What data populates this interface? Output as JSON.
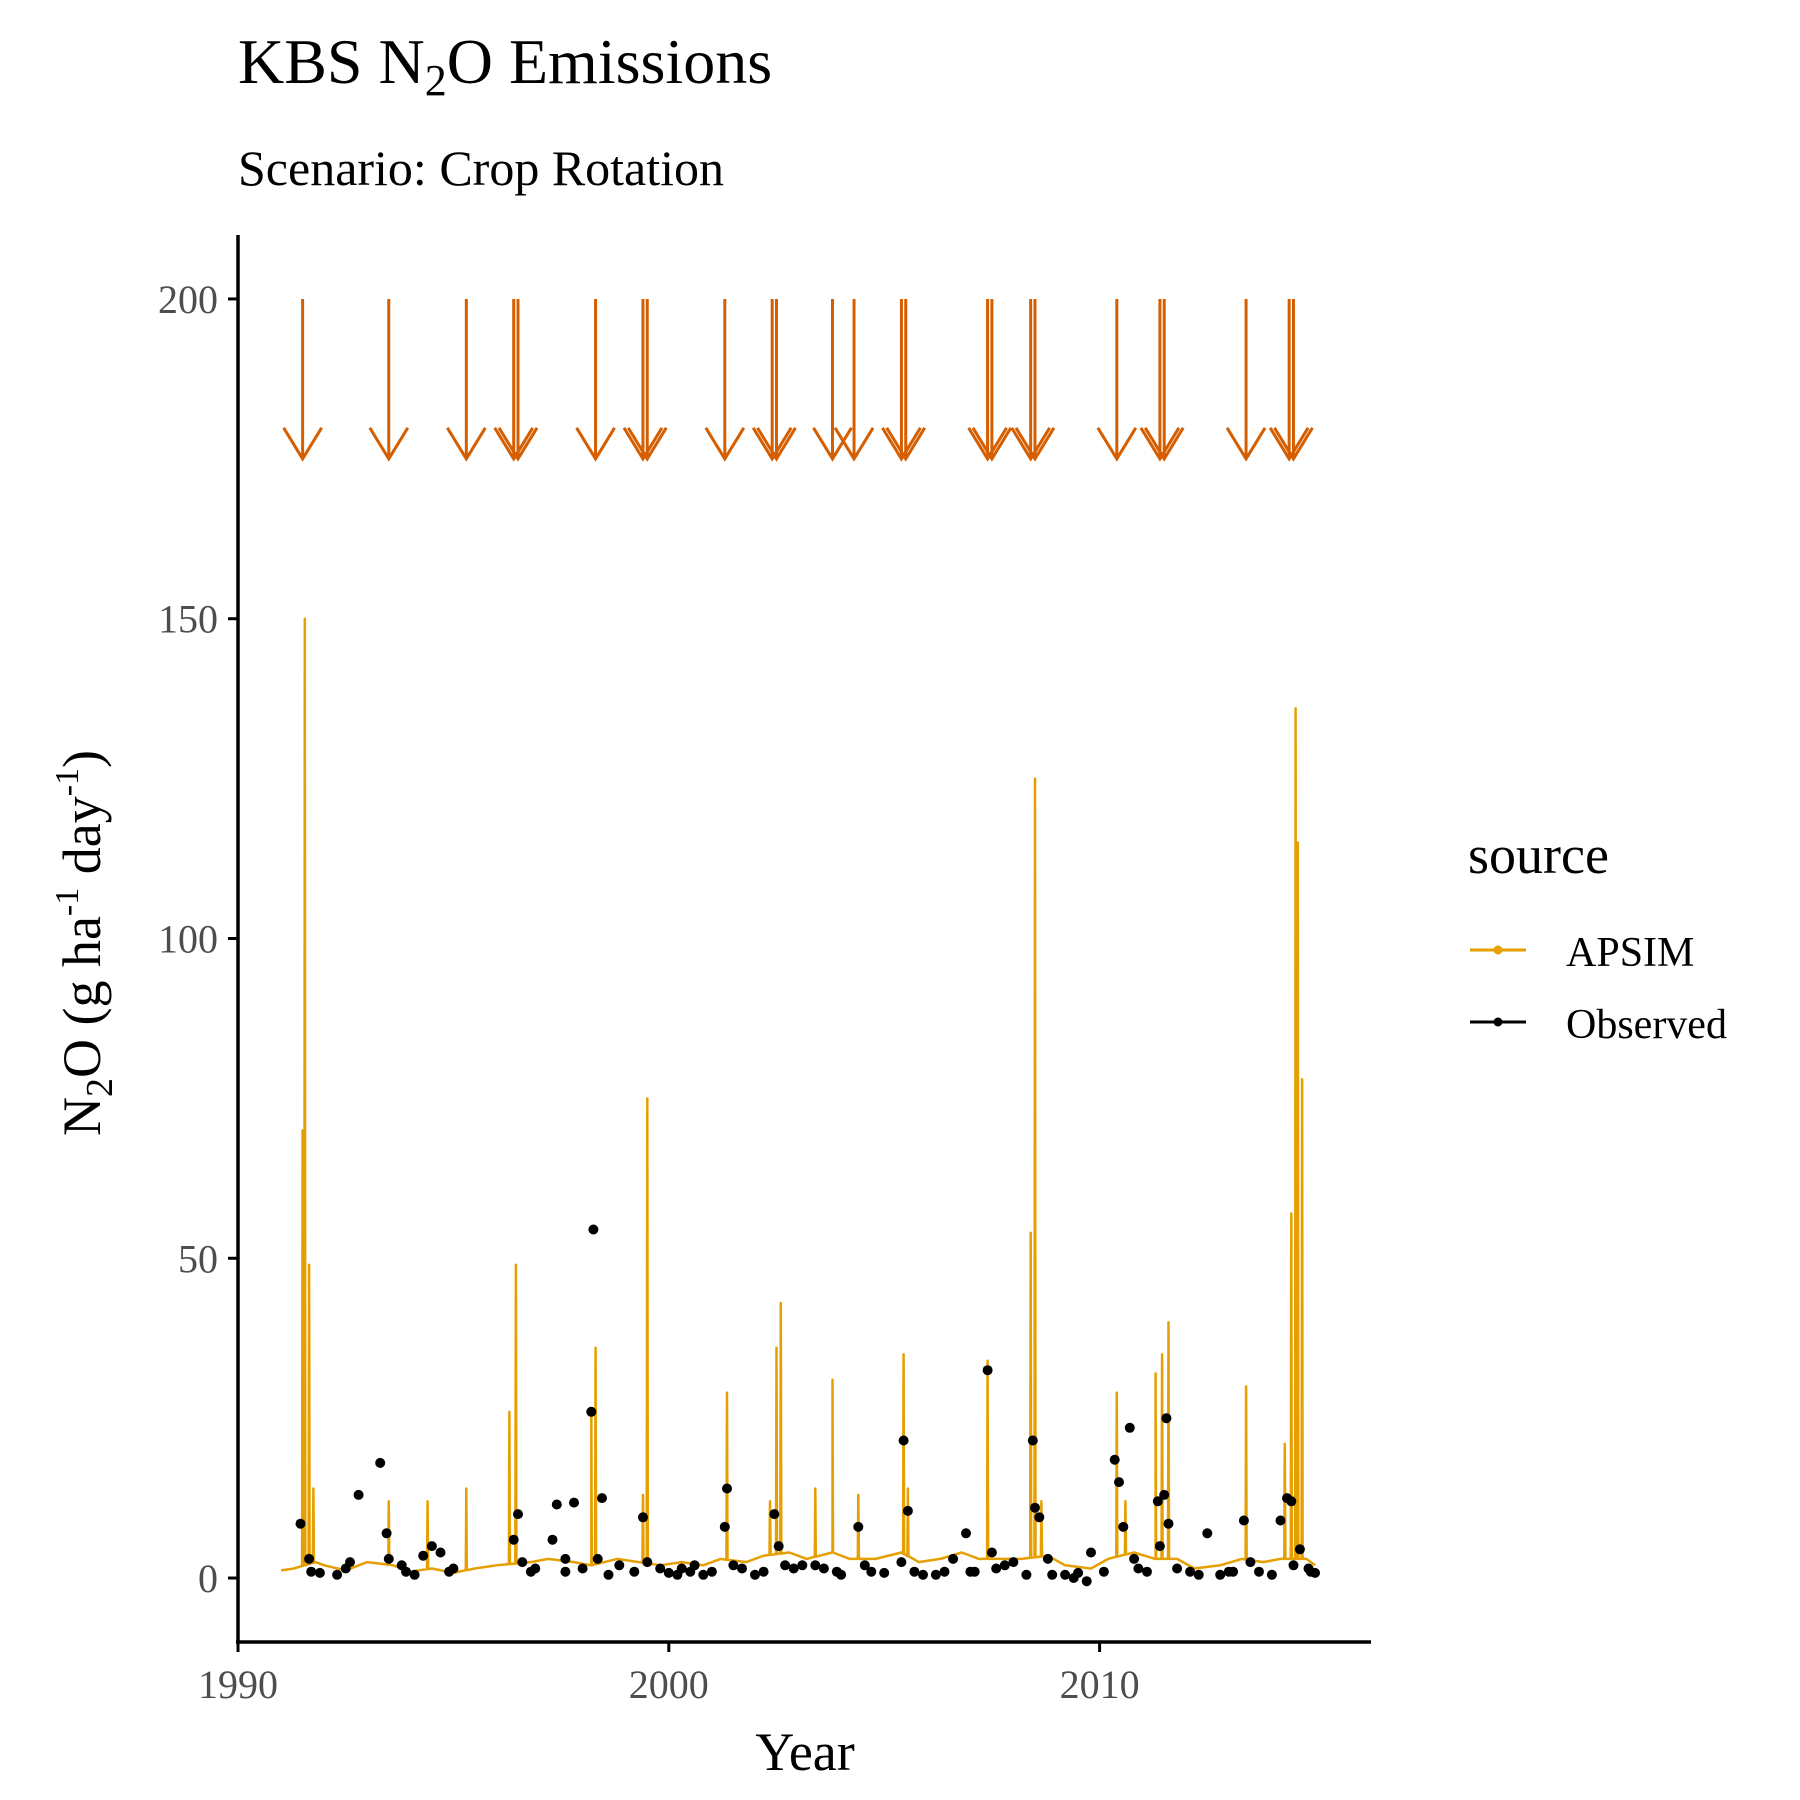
{
  "chart_data": {
    "type": "line",
    "title": {
      "pre": "KBS N",
      "sub": "2",
      "post": "O Emissions"
    },
    "subtitle": "Scenario: Crop Rotation",
    "xlabel": "Year",
    "ylabel": {
      "p1": "N",
      "s1": "2",
      "p2": "O (g ha",
      "s2": "-1",
      "p3": " day",
      "s3": "-1",
      "p4": ")"
    },
    "xlim": [
      1990.0,
      2016.3
    ],
    "ylim": [
      -10,
      210
    ],
    "x_ticks": [
      1990,
      2000,
      2010
    ],
    "x_tick_labels": [
      "1990",
      "2000",
      "2010"
    ],
    "y_ticks": [
      0,
      50,
      100,
      150,
      200
    ],
    "y_tick_labels": [
      "0",
      "50",
      "100",
      "150",
      "200"
    ],
    "grid": false,
    "legend": {
      "title": "source",
      "position": "right",
      "entries": [
        {
          "label": "APSIM",
          "color": "#E69F00"
        },
        {
          "label": "Observed",
          "color": "#000000"
        }
      ]
    },
    "colors": {
      "APSIM": "#E69F00",
      "Observed": "#000000",
      "arrows": "#D55E00"
    },
    "arrows": {
      "y_start": 200,
      "y_end": 175,
      "x": [
        1991.5,
        1993.5,
        1995.3,
        1996.4,
        1996.5,
        1998.3,
        1999.4,
        1999.5,
        2001.3,
        2002.4,
        2002.5,
        2003.8,
        2004.3,
        2005.4,
        2005.5,
        2007.4,
        2007.5,
        2008.4,
        2008.5,
        2010.4,
        2011.4,
        2011.5,
        2013.4,
        2014.4,
        2014.5
      ]
    },
    "series": [
      {
        "name": "APSIM",
        "type": "line",
        "baseline": [
          [
            1991.0,
            1.2
          ],
          [
            1991.3,
            1.5
          ],
          [
            1991.8,
            2.5
          ],
          [
            1992.0,
            2.0
          ],
          [
            1992.5,
            1.2
          ],
          [
            1993.0,
            2.5
          ],
          [
            1993.6,
            2.0
          ],
          [
            1994.0,
            1.0
          ],
          [
            1994.5,
            1.5
          ],
          [
            1995.0,
            0.8
          ],
          [
            1995.5,
            1.5
          ],
          [
            1996.0,
            2.0
          ],
          [
            1996.8,
            2.5
          ],
          [
            1997.2,
            3.0
          ],
          [
            1997.8,
            2.5
          ],
          [
            1998.2,
            2.0
          ],
          [
            1998.8,
            3.0
          ],
          [
            1999.3,
            2.5
          ],
          [
            1999.8,
            2.0
          ],
          [
            2000.3,
            2.5
          ],
          [
            2000.8,
            2.0
          ],
          [
            2001.2,
            3.0
          ],
          [
            2001.8,
            2.5
          ],
          [
            2002.2,
            3.5
          ],
          [
            2002.8,
            4.0
          ],
          [
            2003.2,
            3.0
          ],
          [
            2003.8,
            4.0
          ],
          [
            2004.2,
            3.0
          ],
          [
            2004.8,
            3.0
          ],
          [
            2005.4,
            4.0
          ],
          [
            2005.8,
            2.5
          ],
          [
            2006.3,
            3.0
          ],
          [
            2006.8,
            4.0
          ],
          [
            2007.2,
            3.0
          ],
          [
            2007.8,
            3.0
          ],
          [
            2008.2,
            3.0
          ],
          [
            2008.8,
            3.5
          ],
          [
            2009.2,
            2.0
          ],
          [
            2009.8,
            1.5
          ],
          [
            2010.2,
            3.0
          ],
          [
            2010.8,
            4.0
          ],
          [
            2011.3,
            3.0
          ],
          [
            2011.8,
            3.0
          ],
          [
            2012.2,
            1.5
          ],
          [
            2012.8,
            2.0
          ],
          [
            2013.3,
            3.0
          ],
          [
            2013.8,
            2.5
          ],
          [
            2014.2,
            3.0
          ],
          [
            2014.8,
            3.0
          ],
          [
            2015.0,
            2.0
          ]
        ],
        "spikes": [
          [
            1991.55,
            150
          ],
          [
            1991.5,
            70
          ],
          [
            1991.65,
            49
          ],
          [
            1991.75,
            14
          ],
          [
            1993.5,
            12
          ],
          [
            1994.4,
            12
          ],
          [
            1995.3,
            14
          ],
          [
            1996.3,
            26
          ],
          [
            1996.45,
            49
          ],
          [
            1998.2,
            26
          ],
          [
            1998.3,
            36
          ],
          [
            1999.4,
            13
          ],
          [
            1999.5,
            75
          ],
          [
            2001.35,
            29
          ],
          [
            2002.35,
            12
          ],
          [
            2002.5,
            36
          ],
          [
            2002.6,
            43
          ],
          [
            2003.4,
            14
          ],
          [
            2003.8,
            31
          ],
          [
            2004.4,
            13
          ],
          [
            2005.45,
            35
          ],
          [
            2005.55,
            14
          ],
          [
            2007.4,
            34
          ],
          [
            2008.4,
            54
          ],
          [
            2008.5,
            125
          ],
          [
            2008.65,
            12
          ],
          [
            2010.4,
            29
          ],
          [
            2010.6,
            12
          ],
          [
            2011.3,
            32
          ],
          [
            2011.45,
            35
          ],
          [
            2011.6,
            40
          ],
          [
            2013.4,
            30
          ],
          [
            2014.3,
            21
          ],
          [
            2014.45,
            57
          ],
          [
            2014.55,
            136
          ],
          [
            2014.6,
            115
          ],
          [
            2014.7,
            78
          ]
        ]
      },
      {
        "name": "Observed",
        "type": "scatter",
        "points": [
          [
            1991.45,
            8.5
          ],
          [
            1991.65,
            3.0
          ],
          [
            1991.7,
            1.0
          ],
          [
            1992.5,
            1.5
          ],
          [
            1992.8,
            13
          ],
          [
            1993.3,
            18
          ],
          [
            1993.45,
            7.0
          ],
          [
            1993.5,
            3.0
          ],
          [
            1993.8,
            2.0
          ],
          [
            1994.3,
            3.5
          ],
          [
            1994.5,
            5.0
          ],
          [
            1994.7,
            4.0
          ],
          [
            1994.9,
            1.0
          ],
          [
            1996.4,
            6.0
          ],
          [
            1996.5,
            10
          ],
          [
            1996.6,
            2.5
          ],
          [
            1996.8,
            1.0
          ],
          [
            1997.3,
            6.0
          ],
          [
            1997.4,
            11.5
          ],
          [
            1997.6,
            3.0
          ],
          [
            1997.8,
            11.8
          ],
          [
            1998.2,
            26
          ],
          [
            1998.25,
            54.5
          ],
          [
            1998.35,
            3.0
          ],
          [
            1998.45,
            12.5
          ],
          [
            1998.85,
            2.0
          ],
          [
            1999.4,
            9.5
          ],
          [
            1999.5,
            2.5
          ],
          [
            1999.8,
            1.5
          ],
          [
            2000.2,
            0.5
          ],
          [
            2000.5,
            1.0
          ],
          [
            2000.8,
            0.5
          ],
          [
            2001.3,
            8.0
          ],
          [
            2001.35,
            14
          ],
          [
            2001.5,
            2.0
          ],
          [
            2002.0,
            0.5
          ],
          [
            2002.45,
            10.0
          ],
          [
            2002.55,
            5.0
          ],
          [
            2002.7,
            2.0
          ],
          [
            2003.4,
            2.0
          ],
          [
            2003.9,
            1.0
          ],
          [
            2004.4,
            8.0
          ],
          [
            2004.55,
            2.0
          ],
          [
            2005.4,
            2.5
          ],
          [
            2005.45,
            21.5
          ],
          [
            2005.55,
            10.5
          ],
          [
            2005.7,
            1.0
          ],
          [
            2006.6,
            3.0
          ],
          [
            2006.9,
            7.0
          ],
          [
            2007.1,
            1.0
          ],
          [
            2007.4,
            32.5
          ],
          [
            2007.5,
            4.0
          ],
          [
            2007.8,
            2.0
          ],
          [
            2008.45,
            21.5
          ],
          [
            2008.5,
            11.0
          ],
          [
            2008.6,
            9.5
          ],
          [
            2008.8,
            3.0
          ],
          [
            2009.5,
            0.8
          ],
          [
            2009.8,
            4.0
          ],
          [
            2010.35,
            18.5
          ],
          [
            2010.45,
            15
          ],
          [
            2010.55,
            8.0
          ],
          [
            2010.7,
            23.5
          ],
          [
            2010.8,
            3.0
          ],
          [
            2011.35,
            12
          ],
          [
            2011.4,
            5.0
          ],
          [
            2011.5,
            13
          ],
          [
            2011.55,
            25
          ],
          [
            2011.6,
            8.5
          ],
          [
            2012.5,
            7.0
          ],
          [
            2013.0,
            1.0
          ],
          [
            2013.35,
            9.0
          ],
          [
            2013.5,
            2.5
          ],
          [
            2014.2,
            9.0
          ],
          [
            2014.35,
            12.5
          ],
          [
            2014.45,
            12
          ],
          [
            2014.5,
            2.0
          ],
          [
            2014.65,
            4.5
          ],
          [
            2014.85,
            1.5
          ],
          [
            1991.9,
            0.8
          ],
          [
            1992.3,
            0.5
          ],
          [
            1992.6,
            2.5
          ],
          [
            1993.9,
            1.0
          ],
          [
            1994.1,
            0.5
          ],
          [
            1995.0,
            1.5
          ],
          [
            1996.9,
            1.5
          ],
          [
            1997.6,
            1.0
          ],
          [
            1998.0,
            1.5
          ],
          [
            1998.6,
            0.5
          ],
          [
            1999.2,
            1.0
          ],
          [
            2000.0,
            0.8
          ],
          [
            2000.3,
            1.5
          ],
          [
            2000.6,
            2.0
          ],
          [
            2001.0,
            1.0
          ],
          [
            2001.7,
            1.5
          ],
          [
            2002.2,
            1.0
          ],
          [
            2002.9,
            1.5
          ],
          [
            2003.1,
            2.0
          ],
          [
            2003.6,
            1.5
          ],
          [
            2004.0,
            0.5
          ],
          [
            2004.7,
            1.0
          ],
          [
            2005.0,
            0.8
          ],
          [
            2005.9,
            0.5
          ],
          [
            2006.2,
            0.5
          ],
          [
            2006.4,
            1.0
          ],
          [
            2007.0,
            1.0
          ],
          [
            2007.6,
            1.5
          ],
          [
            2008.0,
            2.5
          ],
          [
            2008.3,
            0.5
          ],
          [
            2008.9,
            0.5
          ],
          [
            2009.2,
            0.5
          ],
          [
            2009.4,
            0.0
          ],
          [
            2009.7,
            -0.5
          ],
          [
            2010.1,
            1.0
          ],
          [
            2010.9,
            1.5
          ],
          [
            2011.1,
            1.0
          ],
          [
            2011.8,
            1.5
          ],
          [
            2012.1,
            1.0
          ],
          [
            2012.3,
            0.5
          ],
          [
            2012.8,
            0.5
          ],
          [
            2013.1,
            1.0
          ],
          [
            2013.7,
            1.0
          ],
          [
            2014.0,
            0.5
          ],
          [
            2014.9,
            1.0
          ],
          [
            2015.0,
            0.8
          ]
        ]
      }
    ]
  }
}
